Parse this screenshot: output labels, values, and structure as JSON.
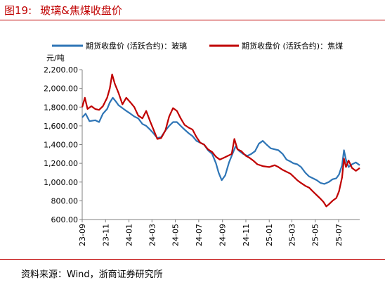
{
  "figure": {
    "label": "图19:",
    "title": "玻璃&焦煤收盘价",
    "source": "资料来源：Wind，浙商证券研究所"
  },
  "chart_data": {
    "type": "line",
    "ylabel": "元/吨",
    "xlabel": "",
    "ylim": [
      600,
      2200
    ],
    "yticks": [
      "2,200.00",
      "2,000.00",
      "1,800.00",
      "1,600.00",
      "1,400.00",
      "1,200.00",
      "1,000.00",
      "800.00",
      "600.00"
    ],
    "ytick_values": [
      2200,
      2000,
      1800,
      1600,
      1400,
      1200,
      1000,
      800,
      600
    ],
    "xticks": [
      "23-09",
      "23-11",
      "24-01",
      "24-03",
      "24-05",
      "24-07",
      "24-09",
      "24-11",
      "25-01",
      "25-03",
      "25-05",
      "25-07"
    ],
    "xtick_values": [
      "2023-09",
      "2023-11",
      "2024-01",
      "2024-03",
      "2024-05",
      "2024-07",
      "2024-09",
      "2024-11",
      "2025-01",
      "2025-03",
      "2025-05",
      "2025-07"
    ],
    "x_range": [
      "2023-09",
      "2025-08-25"
    ],
    "legend_position": "top",
    "grid": false,
    "series": [
      {
        "name": "期货收盘价 (活跃合约)：玻璃",
        "color": "#2e75b6",
        "points": [
          [
            "2023-09-01",
            1690
          ],
          [
            "2023-09-10",
            1730
          ],
          [
            "2023-09-20",
            1650
          ],
          [
            "2023-10-05",
            1660
          ],
          [
            "2023-10-15",
            1640
          ],
          [
            "2023-10-25",
            1730
          ],
          [
            "2023-11-05",
            1780
          ],
          [
            "2023-11-12",
            1850
          ],
          [
            "2023-11-20",
            1900
          ],
          [
            "2023-11-28",
            1860
          ],
          [
            "2023-12-05",
            1820
          ],
          [
            "2023-12-15",
            1790
          ],
          [
            "2023-12-25",
            1760
          ],
          [
            "2024-01-05",
            1730
          ],
          [
            "2024-01-15",
            1700
          ],
          [
            "2024-01-25",
            1680
          ],
          [
            "2024-02-05",
            1620
          ],
          [
            "2024-02-15",
            1600
          ],
          [
            "2024-02-25",
            1560
          ],
          [
            "2024-03-05",
            1520
          ],
          [
            "2024-03-15",
            1470
          ],
          [
            "2024-03-25",
            1480
          ],
          [
            "2024-04-05",
            1550
          ],
          [
            "2024-04-15",
            1600
          ],
          [
            "2024-04-25",
            1640
          ],
          [
            "2024-05-05",
            1640
          ],
          [
            "2024-05-15",
            1600
          ],
          [
            "2024-05-25",
            1560
          ],
          [
            "2024-06-05",
            1520
          ],
          [
            "2024-06-15",
            1490
          ],
          [
            "2024-06-25",
            1440
          ],
          [
            "2024-07-05",
            1420
          ],
          [
            "2024-07-15",
            1400
          ],
          [
            "2024-07-25",
            1340
          ],
          [
            "2024-08-05",
            1300
          ],
          [
            "2024-08-15",
            1200
          ],
          [
            "2024-08-22",
            1100
          ],
          [
            "2024-08-30",
            1020
          ],
          [
            "2024-09-08",
            1070
          ],
          [
            "2024-09-18",
            1210
          ],
          [
            "2024-09-28",
            1310
          ],
          [
            "2024-10-05",
            1380
          ],
          [
            "2024-10-15",
            1330
          ],
          [
            "2024-10-25",
            1300
          ],
          [
            "2024-11-05",
            1280
          ],
          [
            "2024-11-15",
            1300
          ],
          [
            "2024-11-25",
            1330
          ],
          [
            "2024-12-05",
            1410
          ],
          [
            "2024-12-15",
            1440
          ],
          [
            "2024-12-25",
            1400
          ],
          [
            "2025-01-05",
            1360
          ],
          [
            "2025-01-15",
            1350
          ],
          [
            "2025-01-25",
            1340
          ],
          [
            "2025-02-05",
            1300
          ],
          [
            "2025-02-15",
            1240
          ],
          [
            "2025-02-25",
            1220
          ],
          [
            "2025-03-05",
            1200
          ],
          [
            "2025-03-15",
            1190
          ],
          [
            "2025-03-25",
            1160
          ],
          [
            "2025-04-05",
            1100
          ],
          [
            "2025-04-15",
            1060
          ],
          [
            "2025-04-25",
            1040
          ],
          [
            "2025-05-05",
            1020
          ],
          [
            "2025-05-15",
            990
          ],
          [
            "2025-05-25",
            980
          ],
          [
            "2025-06-05",
            1000
          ],
          [
            "2025-06-15",
            1030
          ],
          [
            "2025-06-25",
            1040
          ],
          [
            "2025-07-02",
            1080
          ],
          [
            "2025-07-10",
            1180
          ],
          [
            "2025-07-15",
            1340
          ],
          [
            "2025-07-20",
            1240
          ],
          [
            "2025-07-27",
            1160
          ],
          [
            "2025-08-05",
            1190
          ],
          [
            "2025-08-15",
            1210
          ],
          [
            "2025-08-25",
            1180
          ]
        ]
      },
      {
        "name": "期货收盘价 (活跃合约)：焦煤",
        "color": "#c00000",
        "points": [
          [
            "2023-09-01",
            1800
          ],
          [
            "2023-09-08",
            1900
          ],
          [
            "2023-09-15",
            1780
          ],
          [
            "2023-09-25",
            1810
          ],
          [
            "2023-10-05",
            1780
          ],
          [
            "2023-10-15",
            1770
          ],
          [
            "2023-10-25",
            1810
          ],
          [
            "2023-11-05",
            1900
          ],
          [
            "2023-11-12",
            2000
          ],
          [
            "2023-11-18",
            2150
          ],
          [
            "2023-11-25",
            2050
          ],
          [
            "2023-12-05",
            1950
          ],
          [
            "2023-12-15",
            1830
          ],
          [
            "2023-12-25",
            1900
          ],
          [
            "2024-01-05",
            1850
          ],
          [
            "2024-01-15",
            1800
          ],
          [
            "2024-01-25",
            1710
          ],
          [
            "2024-02-05",
            1680
          ],
          [
            "2024-02-15",
            1760
          ],
          [
            "2024-02-25",
            1650
          ],
          [
            "2024-03-05",
            1560
          ],
          [
            "2024-03-15",
            1460
          ],
          [
            "2024-03-25",
            1470
          ],
          [
            "2024-04-05",
            1550
          ],
          [
            "2024-04-15",
            1700
          ],
          [
            "2024-04-25",
            1790
          ],
          [
            "2024-05-05",
            1760
          ],
          [
            "2024-05-15",
            1680
          ],
          [
            "2024-05-25",
            1610
          ],
          [
            "2024-06-05",
            1580
          ],
          [
            "2024-06-15",
            1560
          ],
          [
            "2024-06-25",
            1480
          ],
          [
            "2024-07-05",
            1420
          ],
          [
            "2024-07-15",
            1400
          ],
          [
            "2024-07-25",
            1350
          ],
          [
            "2024-08-05",
            1320
          ],
          [
            "2024-08-15",
            1270
          ],
          [
            "2024-08-25",
            1240
          ],
          [
            "2024-09-05",
            1260
          ],
          [
            "2024-09-15",
            1280
          ],
          [
            "2024-09-25",
            1300
          ],
          [
            "2024-10-02",
            1460
          ],
          [
            "2024-10-10",
            1350
          ],
          [
            "2024-10-20",
            1330
          ],
          [
            "2024-11-01",
            1280
          ],
          [
            "2024-11-10",
            1260
          ],
          [
            "2024-11-20",
            1230
          ],
          [
            "2024-12-01",
            1190
          ],
          [
            "2024-12-15",
            1170
          ],
          [
            "2025-01-01",
            1160
          ],
          [
            "2025-01-15",
            1180
          ],
          [
            "2025-01-25",
            1160
          ],
          [
            "2025-02-05",
            1130
          ],
          [
            "2025-02-15",
            1110
          ],
          [
            "2025-02-25",
            1090
          ],
          [
            "2025-03-05",
            1060
          ],
          [
            "2025-03-15",
            1020
          ],
          [
            "2025-03-25",
            990
          ],
          [
            "2025-04-05",
            960
          ],
          [
            "2025-04-15",
            940
          ],
          [
            "2025-04-25",
            900
          ],
          [
            "2025-05-05",
            860
          ],
          [
            "2025-05-15",
            820
          ],
          [
            "2025-05-22",
            790
          ],
          [
            "2025-05-30",
            740
          ],
          [
            "2025-06-05",
            760
          ],
          [
            "2025-06-15",
            800
          ],
          [
            "2025-06-25",
            830
          ],
          [
            "2025-07-02",
            900
          ],
          [
            "2025-07-10",
            1050
          ],
          [
            "2025-07-15",
            1250
          ],
          [
            "2025-07-20",
            1160
          ],
          [
            "2025-07-27",
            1230
          ],
          [
            "2025-08-05",
            1150
          ],
          [
            "2025-08-15",
            1120
          ],
          [
            "2025-08-25",
            1150
          ]
        ]
      }
    ]
  }
}
